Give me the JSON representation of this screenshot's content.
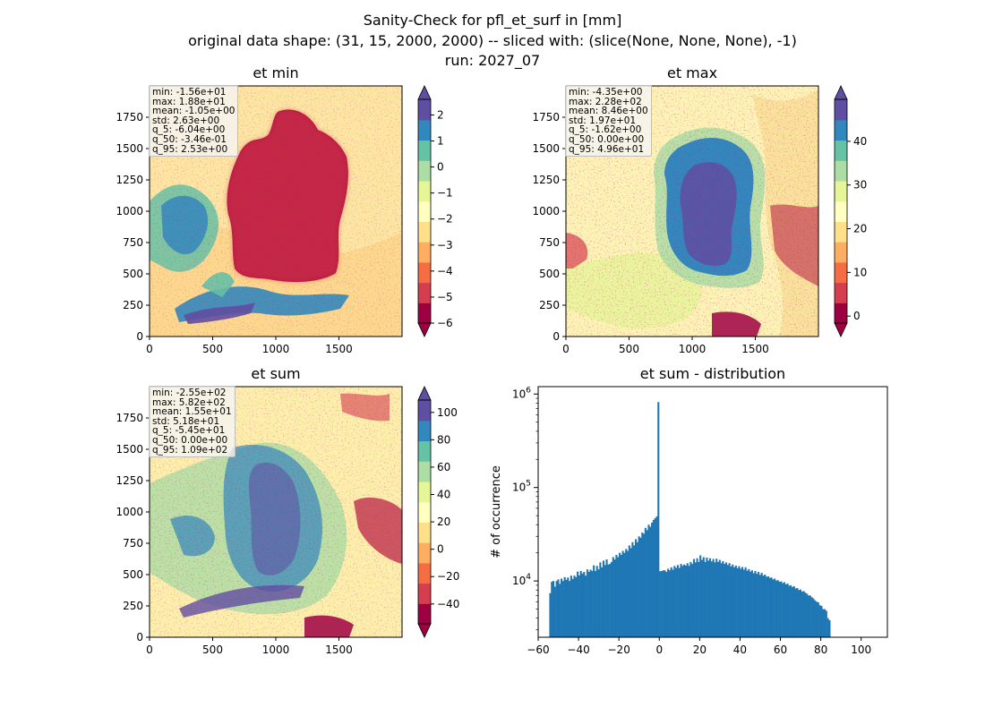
{
  "suptitle": {
    "line1": "Sanity-Check for pfl_et_surf in [mm]",
    "line2": "original data shape: (31, 15, 2000, 2000) -- sliced with: (slice(None, None, None), -1)",
    "line3": "run: 2027_07"
  },
  "colors": {
    "spectral": [
      "#9e0142",
      "#d53e4f",
      "#f46d43",
      "#fdae61",
      "#fee08b",
      "#ffffbf",
      "#e6f598",
      "#abdda4",
      "#66c2a5",
      "#3288bd",
      "#5e4fa2"
    ],
    "hist_bar": "#1f77b4"
  },
  "panels": [
    {
      "title": "et min",
      "stats": [
        "min: -1.56e+01",
        "max: 1.88e+01",
        "mean: -1.05e+00",
        "std: 2.63e+00",
        "q_5: -6.04e+00",
        "q_50: -3.46e-01",
        "q_95: 2.53e+00"
      ],
      "x_ticks": [
        "0",
        "500",
        "1000",
        "1500"
      ],
      "y_ticks": [
        "0",
        "250",
        "500",
        "750",
        "1000",
        "1250",
        "1500",
        "1750"
      ],
      "colorbar": {
        "vmin": -6,
        "vmax": 2.6,
        "ticks": [
          {
            "v": 2,
            "label": "2"
          },
          {
            "v": 1,
            "label": "1"
          },
          {
            "v": 0,
            "label": "0"
          },
          {
            "v": -1,
            "label": "−1"
          },
          {
            "v": -2,
            "label": "−2"
          },
          {
            "v": -3,
            "label": "−3"
          },
          {
            "v": -4,
            "label": "−4"
          },
          {
            "v": -5,
            "label": "−5"
          },
          {
            "v": -6,
            "label": "−6"
          }
        ]
      }
    },
    {
      "title": "et max",
      "stats": [
        "min: -4.35e+00",
        "max: 2.28e+02",
        "mean: 8.46e+00",
        "std: 1.97e+01",
        "q_5: -1.62e+00",
        "q_50: 0.00e+00",
        "q_95: 4.96e+01"
      ],
      "x_ticks": [
        "0",
        "500",
        "1000",
        "1500"
      ],
      "y_ticks": [
        "0",
        "250",
        "500",
        "750",
        "1000",
        "1250",
        "1500",
        "1750"
      ],
      "colorbar": {
        "vmin": -1.6,
        "vmax": 49.6,
        "ticks": [
          {
            "v": 40,
            "label": "40"
          },
          {
            "v": 30,
            "label": "30"
          },
          {
            "v": 20,
            "label": "20"
          },
          {
            "v": 10,
            "label": "10"
          },
          {
            "v": 0,
            "label": "0"
          }
        ]
      }
    },
    {
      "title": "et sum",
      "stats": [
        "min: -2.55e+02",
        "max: 5.82e+02",
        "mean: 1.55e+01",
        "std: 5.18e+01",
        "q_5: -5.45e+01",
        "q_50: 0.00e+00",
        "q_95: 1.09e+02"
      ],
      "x_ticks": [
        "0",
        "500",
        "1000",
        "1500"
      ],
      "y_ticks": [
        "0",
        "250",
        "500",
        "750",
        "1000",
        "1250",
        "1500",
        "1750"
      ],
      "colorbar": {
        "vmin": -54.5,
        "vmax": 109,
        "ticks": [
          {
            "v": 100,
            "label": "100"
          },
          {
            "v": 80,
            "label": "80"
          },
          {
            "v": 60,
            "label": "60"
          },
          {
            "v": 40,
            "label": "40"
          },
          {
            "v": 20,
            "label": "20"
          },
          {
            "v": 0,
            "label": "0"
          },
          {
            "v": -20,
            "label": "−20"
          },
          {
            "v": -40,
            "label": "−40"
          }
        ]
      }
    }
  ],
  "chart_data": {
    "type": "bar",
    "title": "et sum - distribution",
    "xlabel": "",
    "ylabel": "# of occurrence",
    "y_scale": "log",
    "xlim": [
      -60,
      113
    ],
    "ylim": [
      2500,
      1200000
    ],
    "x_ticks": [
      {
        "v": -60,
        "label": "−60"
      },
      {
        "v": -40,
        "label": "−40"
      },
      {
        "v": -20,
        "label": "−20"
      },
      {
        "v": 0,
        "label": "0"
      },
      {
        "v": 20,
        "label": "20"
      },
      {
        "v": 40,
        "label": "40"
      },
      {
        "v": 60,
        "label": "60"
      },
      {
        "v": 80,
        "label": "80"
      },
      {
        "v": 100,
        "label": "100"
      }
    ],
    "y_ticks": [
      {
        "v": 10000,
        "label": "10",
        "sup": "4"
      },
      {
        "v": 100000,
        "label": "10",
        "sup": "5"
      },
      {
        "v": 1000000,
        "label": "10",
        "sup": "6"
      }
    ],
    "bin_start": -54.5,
    "bin_width": 0.8,
    "counts": [
      7400,
      9800,
      10000,
      8700,
      10000,
      10400,
      9300,
      10600,
      10000,
      11000,
      10300,
      10900,
      10000,
      11400,
      10500,
      11400,
      11000,
      12600,
      11500,
      12800,
      12000,
      12500,
      11400,
      13300,
      12500,
      13200,
      12800,
      14700,
      12800,
      14500,
      13300,
      15800,
      14000,
      16500,
      14800,
      17000,
      15000,
      15200,
      16000,
      18000,
      17000,
      19000,
      18000,
      20000,
      19000,
      21000,
      20000,
      22000,
      21000,
      24000,
      22500,
      26000,
      24000,
      28000,
      26000,
      30000,
      29000,
      33000,
      32000,
      37000,
      35000,
      40000,
      38000,
      42000,
      45000,
      47000,
      49000,
      820000,
      12700,
      12800,
      13000,
      13000,
      12500,
      13500,
      13000,
      14000,
      13200,
      14500,
      13800,
      14800,
      13800,
      15200,
      14500,
      15000,
      14600,
      15500,
      14500,
      16000,
      15200,
      17200,
      15800,
      17500,
      16000,
      18800,
      16800,
      18000,
      16000,
      17800,
      16500,
      17500,
      16200,
      17200,
      15800,
      17300,
      16000,
      16800,
      15500,
      16300,
      15200,
      15800,
      14800,
      15500,
      14300,
      15000,
      14000,
      14600,
      13700,
      14400,
      13500,
      14100,
      13200,
      14000,
      12900,
      13400,
      12600,
      13000,
      12100,
      12800,
      11900,
      12500,
      11600,
      12200,
      11400,
      11700,
      11100,
      11200,
      10800,
      10900,
      10400,
      10600,
      10100,
      10200,
      9800,
      9900,
      9500,
      9700,
      9200,
      9400,
      8900,
      9000,
      8600,
      8800,
      8300,
      8400,
      8000,
      8100,
      7700,
      7800,
      7500,
      7300,
      7000,
      7000,
      6700,
      6500,
      6200,
      6000,
      5900,
      5500,
      5400,
      5000,
      5000,
      4800,
      4000,
      3800
    ]
  }
}
